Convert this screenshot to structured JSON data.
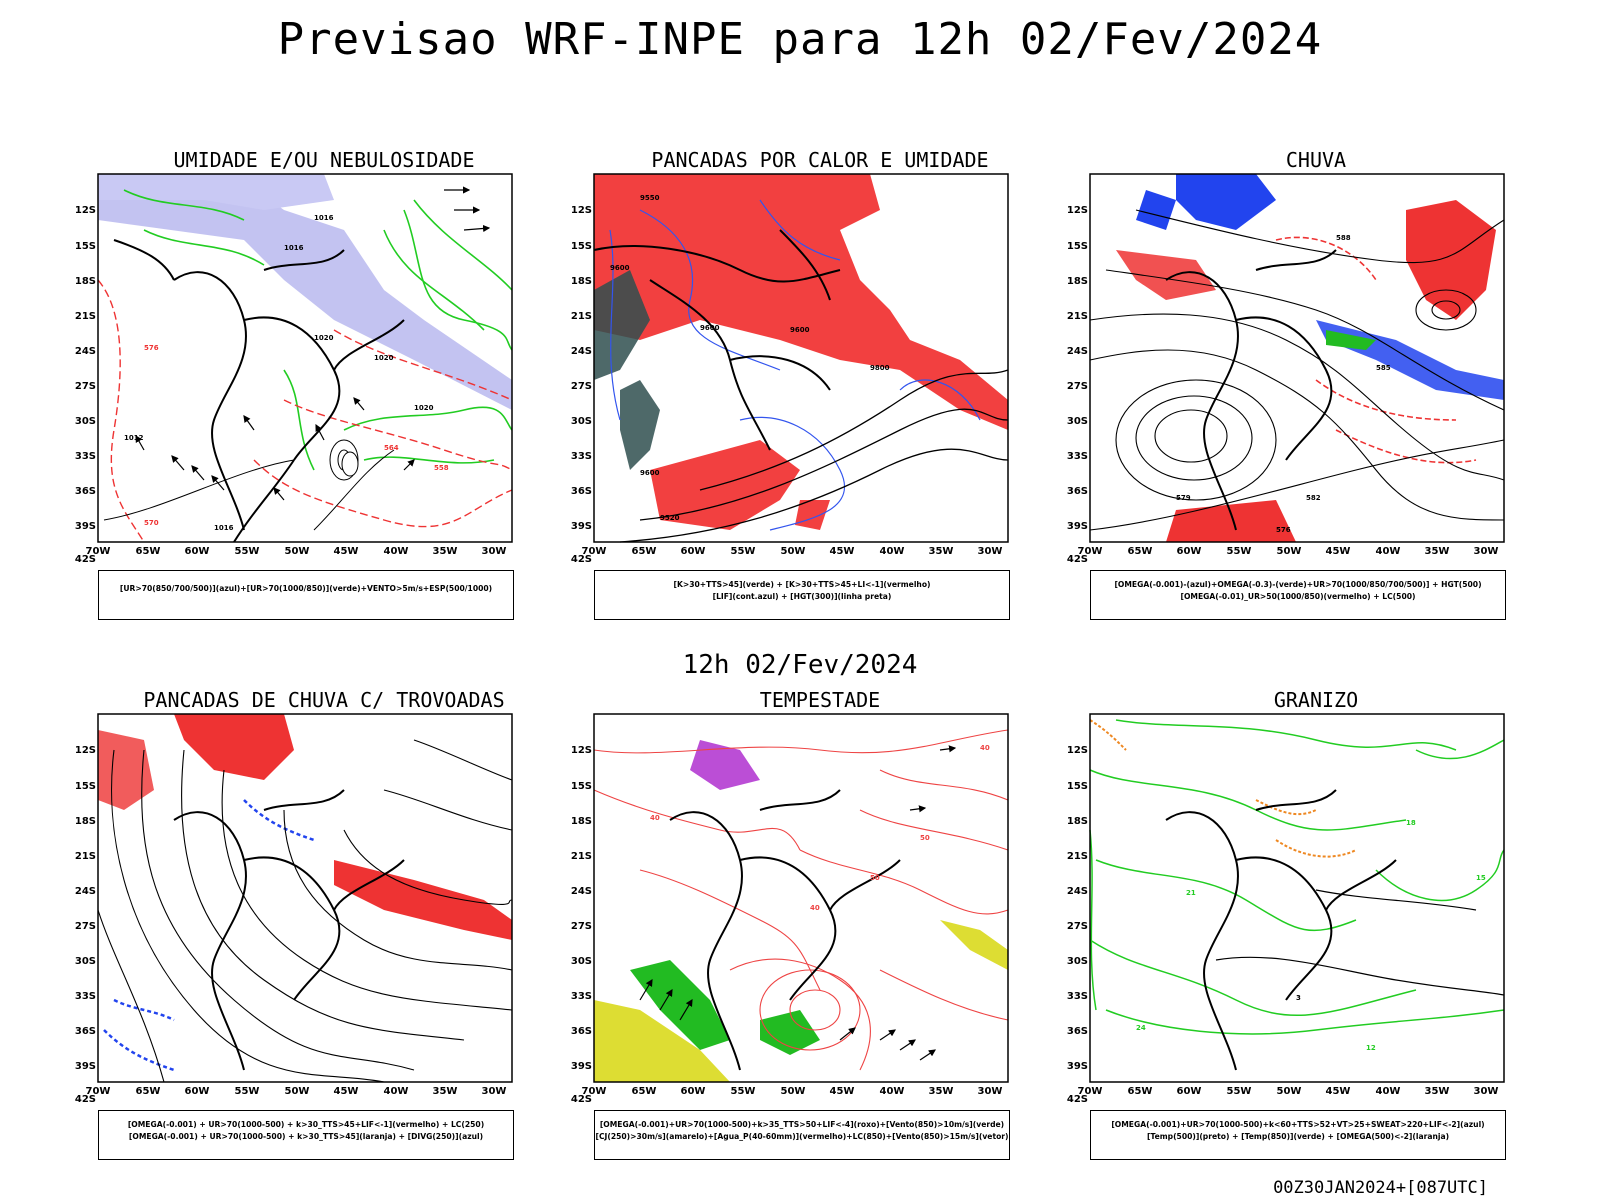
{
  "title": "Previsao WRF-INPE  para 12h 02/Fev/2024",
  "subtitle": "12h 02/Fev/2024",
  "footer": "00Z30JAN2024+[087UTC]",
  "axes": {
    "lat_labels": [
      "12S",
      "15S",
      "18S",
      "21S",
      "24S",
      "27S",
      "30S",
      "33S",
      "36S",
      "39S",
      "42S"
    ],
    "lon_labels": [
      "70W",
      "65W",
      "60W",
      "55W",
      "50W",
      "45W",
      "40W",
      "35W",
      "30W"
    ]
  },
  "panels": [
    {
      "title": "UMIDADE E/OU NEBULOSIDADE",
      "caption": [
        "[UR>70(850/700/500)](azul)+[UR>70(1000/850)](verde)+VENTO>5m/s+ESP(500/1000)"
      ],
      "contour_labels": [
        "1016",
        "1016",
        "1020",
        "1020",
        "1012",
        "576",
        "570",
        "564",
        "558",
        "1016",
        "1020"
      ],
      "colors": {
        "humid_high": "#b8b8ee",
        "humid_low": "#22cc22",
        "thickness": "#ee3333"
      }
    },
    {
      "title": "PANCADAS POR CALOR E UMIDADE",
      "caption": [
        "[K>30+TTS>45](verde) + [K>30+TTS>45+LI<-1](vermelho)",
        "[LIF](cont.azul) + [HGT(300)](linha preta)"
      ],
      "contour_labels": [
        "9550",
        "9600",
        "9600",
        "9600",
        "9600",
        "9520",
        "9800"
      ],
      "colors": {
        "convective": "#f24040",
        "stable": "#2f4f4f",
        "lifted": "#3355ee"
      }
    },
    {
      "title": "CHUVA",
      "caption": [
        "[OMEGA(-0.001)-(azul)+OMEGA(-0.3)-(verde)+UR>70(1000/850/700/500)] + HGT(500)",
        "[OMEGA(-0.01)_UR>50(1000/850)(vermelho) + LC(500)"
      ],
      "contour_labels": [
        "588",
        "585",
        "582",
        "579",
        "576"
      ],
      "colors": {
        "omega_weak": "#2244ee",
        "omega_strong": "#22bb22",
        "rain": "#ee3333"
      }
    },
    {
      "title": "PANCADAS DE CHUVA C/ TROVOADAS",
      "caption": [
        "[OMEGA(-0.001) + UR>70(1000-500) + k>30_TTS>45+LIF<-1](vermelho) + LC(250)",
        "[OMEGA(-0.001) + UR>70(1000-500) + k>30_TTS>45](laranja) + [DIVG(250)](azul)"
      ],
      "contour_labels": [],
      "colors": {
        "storm": "#ee3333",
        "divergence": "#2244ee"
      }
    },
    {
      "title": "TEMPESTADE",
      "caption": [
        "[OMEGA(-0.001)+UR>70(1000-500)+k>35_TTS>50+LIF<-4](roxo)+[Vento(850)>10m/s](verde)",
        "[CJ(250)>30m/s](amarelo)+[Agua_P(40-60mm)](vermelho)+LC(850)+[Vento(850)>15m/s](vetor)"
      ],
      "contour_labels": [
        "40",
        "50",
        "40",
        "40",
        "50"
      ],
      "colors": {
        "jet": "#dddd33",
        "wind": "#22bb22",
        "water": "#ee4444",
        "severe": "#aa22cc"
      }
    },
    {
      "title": "GRANIZO",
      "caption": [
        "[OMEGA(-0.001)+UR>70(1000-500)+k<60+TTS>52+VT>25+SWEAT>220+LIF<-2](azul)",
        "[Temp(500)](preto) + [Temp(850)](verde) + [OMEGA(500)<-2](laranja)"
      ],
      "contour_labels": [
        "15",
        "18",
        "21",
        "24",
        "12",
        "3"
      ],
      "colors": {
        "temp850": "#22cc22",
        "omega500": "#ee8822",
        "hail": "#2244ee"
      }
    }
  ]
}
